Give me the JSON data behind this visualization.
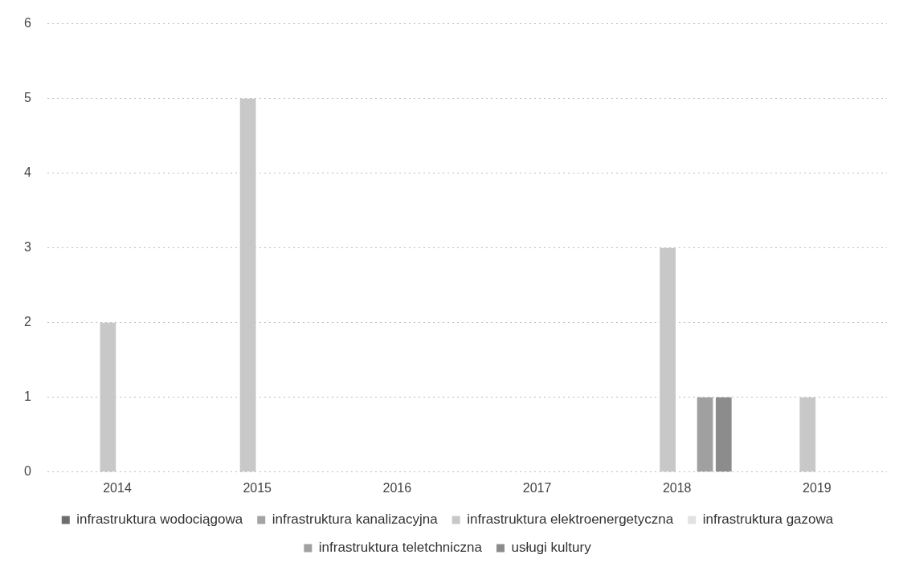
{
  "chart_data": {
    "type": "bar",
    "categories": [
      "2014",
      "2015",
      "2016",
      "2017",
      "2018",
      "2019"
    ],
    "series": [
      {
        "name": "infrastruktura wodociągowa",
        "color": "#6e6e6e",
        "values": [
          0,
          0,
          0,
          0,
          0,
          0
        ]
      },
      {
        "name": "infrastruktura kanalizacyjna",
        "color": "#a4a4a4",
        "values": [
          0,
          0,
          0,
          0,
          0,
          0
        ]
      },
      {
        "name": "infrastruktura elektroenergetyczna",
        "color": "#c8c8c8",
        "values": [
          2,
          5,
          0,
          0,
          3,
          1
        ]
      },
      {
        "name": "infrastruktura gazowa",
        "color": "#e2e2e2",
        "values": [
          0,
          0,
          0,
          0,
          0,
          0
        ]
      },
      {
        "name": "infrastruktura teletchniczna",
        "color": "#a0a0a0",
        "values": [
          0,
          0,
          0,
          0,
          1,
          0
        ]
      },
      {
        "name": "usługi kultury",
        "color": "#8c8c8c",
        "values": [
          0,
          0,
          0,
          0,
          1,
          0
        ]
      }
    ],
    "ylim": [
      0,
      6
    ],
    "yticks": [
      0,
      1,
      2,
      3,
      4,
      5,
      6
    ],
    "grid": "y",
    "legend": "bottom"
  }
}
